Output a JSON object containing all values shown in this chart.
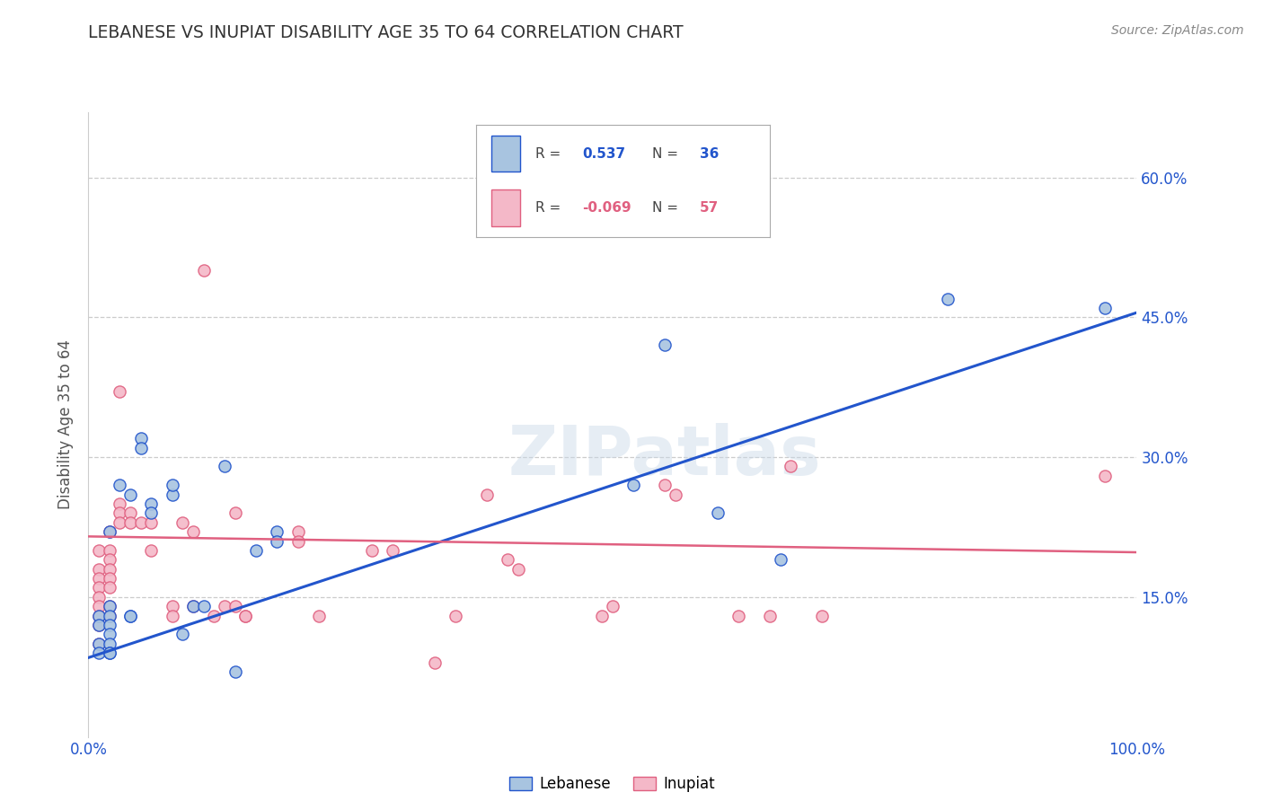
{
  "title": "LEBANESE VS INUPIAT DISABILITY AGE 35 TO 64 CORRELATION CHART",
  "source": "Source: ZipAtlas.com",
  "ylabel": "Disability Age 35 to 64",
  "xlim": [
    0.0,
    1.0
  ],
  "ylim": [
    0.0,
    0.67
  ],
  "x_ticks": [
    0.0,
    0.25,
    0.5,
    0.75,
    1.0
  ],
  "x_tick_labels": [
    "0.0%",
    "",
    "",
    "",
    "100.0%"
  ],
  "y_ticks": [
    0.15,
    0.3,
    0.45,
    0.6
  ],
  "y_tick_labels": [
    "15.0%",
    "30.0%",
    "45.0%",
    "60.0%"
  ],
  "grid_color": "#cccccc",
  "background_color": "#ffffff",
  "watermark": "ZIPatlas",
  "legend": {
    "R_lebanese": "0.537",
    "N_lebanese": "36",
    "R_inupiat": "-0.069",
    "N_inupiat": "57"
  },
  "lebanese_color": "#a8c4e0",
  "inupiat_color": "#f4b8c8",
  "lebanese_line_color": "#2255cc",
  "inupiat_line_color": "#e06080",
  "title_color": "#333333",
  "axis_color": "#2255cc",
  "ylabel_color": "#555555",
  "source_color": "#888888",
  "lebanese_scatter": [
    [
      0.01,
      0.13
    ],
    [
      0.01,
      0.12
    ],
    [
      0.01,
      0.1
    ],
    [
      0.01,
      0.09
    ],
    [
      0.02,
      0.14
    ],
    [
      0.02,
      0.13
    ],
    [
      0.02,
      0.12
    ],
    [
      0.02,
      0.11
    ],
    [
      0.02,
      0.1
    ],
    [
      0.02,
      0.09
    ],
    [
      0.02,
      0.09
    ],
    [
      0.02,
      0.22
    ],
    [
      0.03,
      0.27
    ],
    [
      0.04,
      0.13
    ],
    [
      0.04,
      0.13
    ],
    [
      0.04,
      0.26
    ],
    [
      0.05,
      0.32
    ],
    [
      0.05,
      0.31
    ],
    [
      0.06,
      0.25
    ],
    [
      0.06,
      0.24
    ],
    [
      0.08,
      0.26
    ],
    [
      0.08,
      0.27
    ],
    [
      0.09,
      0.11
    ],
    [
      0.1,
      0.14
    ],
    [
      0.11,
      0.14
    ],
    [
      0.13,
      0.29
    ],
    [
      0.14,
      0.07
    ],
    [
      0.16,
      0.2
    ],
    [
      0.18,
      0.22
    ],
    [
      0.18,
      0.21
    ],
    [
      0.52,
      0.27
    ],
    [
      0.55,
      0.42
    ],
    [
      0.6,
      0.24
    ],
    [
      0.66,
      0.19
    ],
    [
      0.82,
      0.47
    ],
    [
      0.97,
      0.46
    ]
  ],
  "inupiat_scatter": [
    [
      0.01,
      0.2
    ],
    [
      0.01,
      0.18
    ],
    [
      0.01,
      0.17
    ],
    [
      0.01,
      0.16
    ],
    [
      0.01,
      0.15
    ],
    [
      0.01,
      0.14
    ],
    [
      0.01,
      0.13
    ],
    [
      0.01,
      0.12
    ],
    [
      0.01,
      0.1
    ],
    [
      0.02,
      0.22
    ],
    [
      0.02,
      0.2
    ],
    [
      0.02,
      0.19
    ],
    [
      0.02,
      0.18
    ],
    [
      0.02,
      0.17
    ],
    [
      0.02,
      0.16
    ],
    [
      0.02,
      0.14
    ],
    [
      0.02,
      0.13
    ],
    [
      0.03,
      0.37
    ],
    [
      0.03,
      0.25
    ],
    [
      0.03,
      0.24
    ],
    [
      0.03,
      0.23
    ],
    [
      0.04,
      0.24
    ],
    [
      0.04,
      0.23
    ],
    [
      0.05,
      0.23
    ],
    [
      0.06,
      0.23
    ],
    [
      0.06,
      0.2
    ],
    [
      0.08,
      0.14
    ],
    [
      0.08,
      0.13
    ],
    [
      0.09,
      0.23
    ],
    [
      0.1,
      0.22
    ],
    [
      0.1,
      0.14
    ],
    [
      0.11,
      0.5
    ],
    [
      0.12,
      0.13
    ],
    [
      0.13,
      0.14
    ],
    [
      0.14,
      0.24
    ],
    [
      0.14,
      0.14
    ],
    [
      0.15,
      0.13
    ],
    [
      0.15,
      0.13
    ],
    [
      0.2,
      0.22
    ],
    [
      0.2,
      0.21
    ],
    [
      0.22,
      0.13
    ],
    [
      0.27,
      0.2
    ],
    [
      0.29,
      0.2
    ],
    [
      0.33,
      0.08
    ],
    [
      0.35,
      0.13
    ],
    [
      0.38,
      0.26
    ],
    [
      0.4,
      0.19
    ],
    [
      0.41,
      0.18
    ],
    [
      0.49,
      0.13
    ],
    [
      0.5,
      0.14
    ],
    [
      0.55,
      0.27
    ],
    [
      0.56,
      0.26
    ],
    [
      0.62,
      0.13
    ],
    [
      0.65,
      0.13
    ],
    [
      0.67,
      0.29
    ],
    [
      0.7,
      0.13
    ],
    [
      0.97,
      0.28
    ]
  ],
  "lebanese_trendline": [
    [
      0.0,
      0.085
    ],
    [
      1.0,
      0.455
    ]
  ],
  "inupiat_trendline": [
    [
      0.0,
      0.215
    ],
    [
      1.0,
      0.198
    ]
  ]
}
